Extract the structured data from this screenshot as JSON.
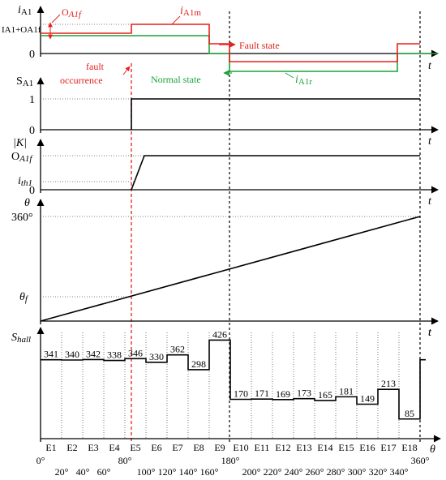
{
  "colors": {
    "red": "#e6201b",
    "green": "#1aa33a",
    "black": "#000000"
  },
  "panel1": {
    "ylabel": "i",
    "ylabel_sub": "A1",
    "level_label": "IA1+OA1f",
    "zero": "0",
    "t": "t",
    "oa1f_label": "O",
    "oa1f_sub": "A1f",
    "iA1m_label": "i",
    "iA1m_sub": "A1m",
    "fault_state": "Fault state",
    "fault_occurrence_1": "fault",
    "fault_occurrence_2": "occurrence",
    "normal_state": "Normal state",
    "iA1r_label": "i",
    "iA1r_sub": "A1r"
  },
  "panel2": {
    "ylabel": "S",
    "ylabel_sub": "A1",
    "one": "1",
    "zero": "0",
    "t": "t"
  },
  "panel3": {
    "ylabel": "|K|",
    "top": "O",
    "top_sub": "A1f",
    "th": "i",
    "th_sub": "th1",
    "zero": "0",
    "t": "t"
  },
  "panel4": {
    "ylabel": "θ",
    "top": "360°",
    "mid": "θ",
    "mid_sub": "f",
    "t": "t"
  },
  "panel5": {
    "ylabel": "S",
    "ylabel_sub": "hall",
    "t": "t",
    "theta": "θ",
    "values": [
      341,
      340,
      342,
      338,
      346,
      330,
      362,
      298,
      426,
      170,
      171,
      169,
      173,
      165,
      181,
      149,
      213,
      85
    ],
    "sectors": [
      "E1",
      "E2",
      "E3",
      "E4",
      "E5",
      "E6",
      "E7",
      "E8",
      "E9",
      "E10",
      "E11",
      "E12",
      "E13",
      "E14",
      "E15",
      "E16",
      "E17",
      "E18"
    ],
    "angles_top": [
      "0°",
      "80°",
      "180°",
      "360°"
    ],
    "angles_bottom": [
      "20°",
      "40°",
      "60°",
      "100°",
      "120°",
      "140°",
      "160°",
      "200°",
      "220°",
      "240°",
      "260°",
      "280°",
      "300°",
      "320°",
      "340°"
    ]
  }
}
